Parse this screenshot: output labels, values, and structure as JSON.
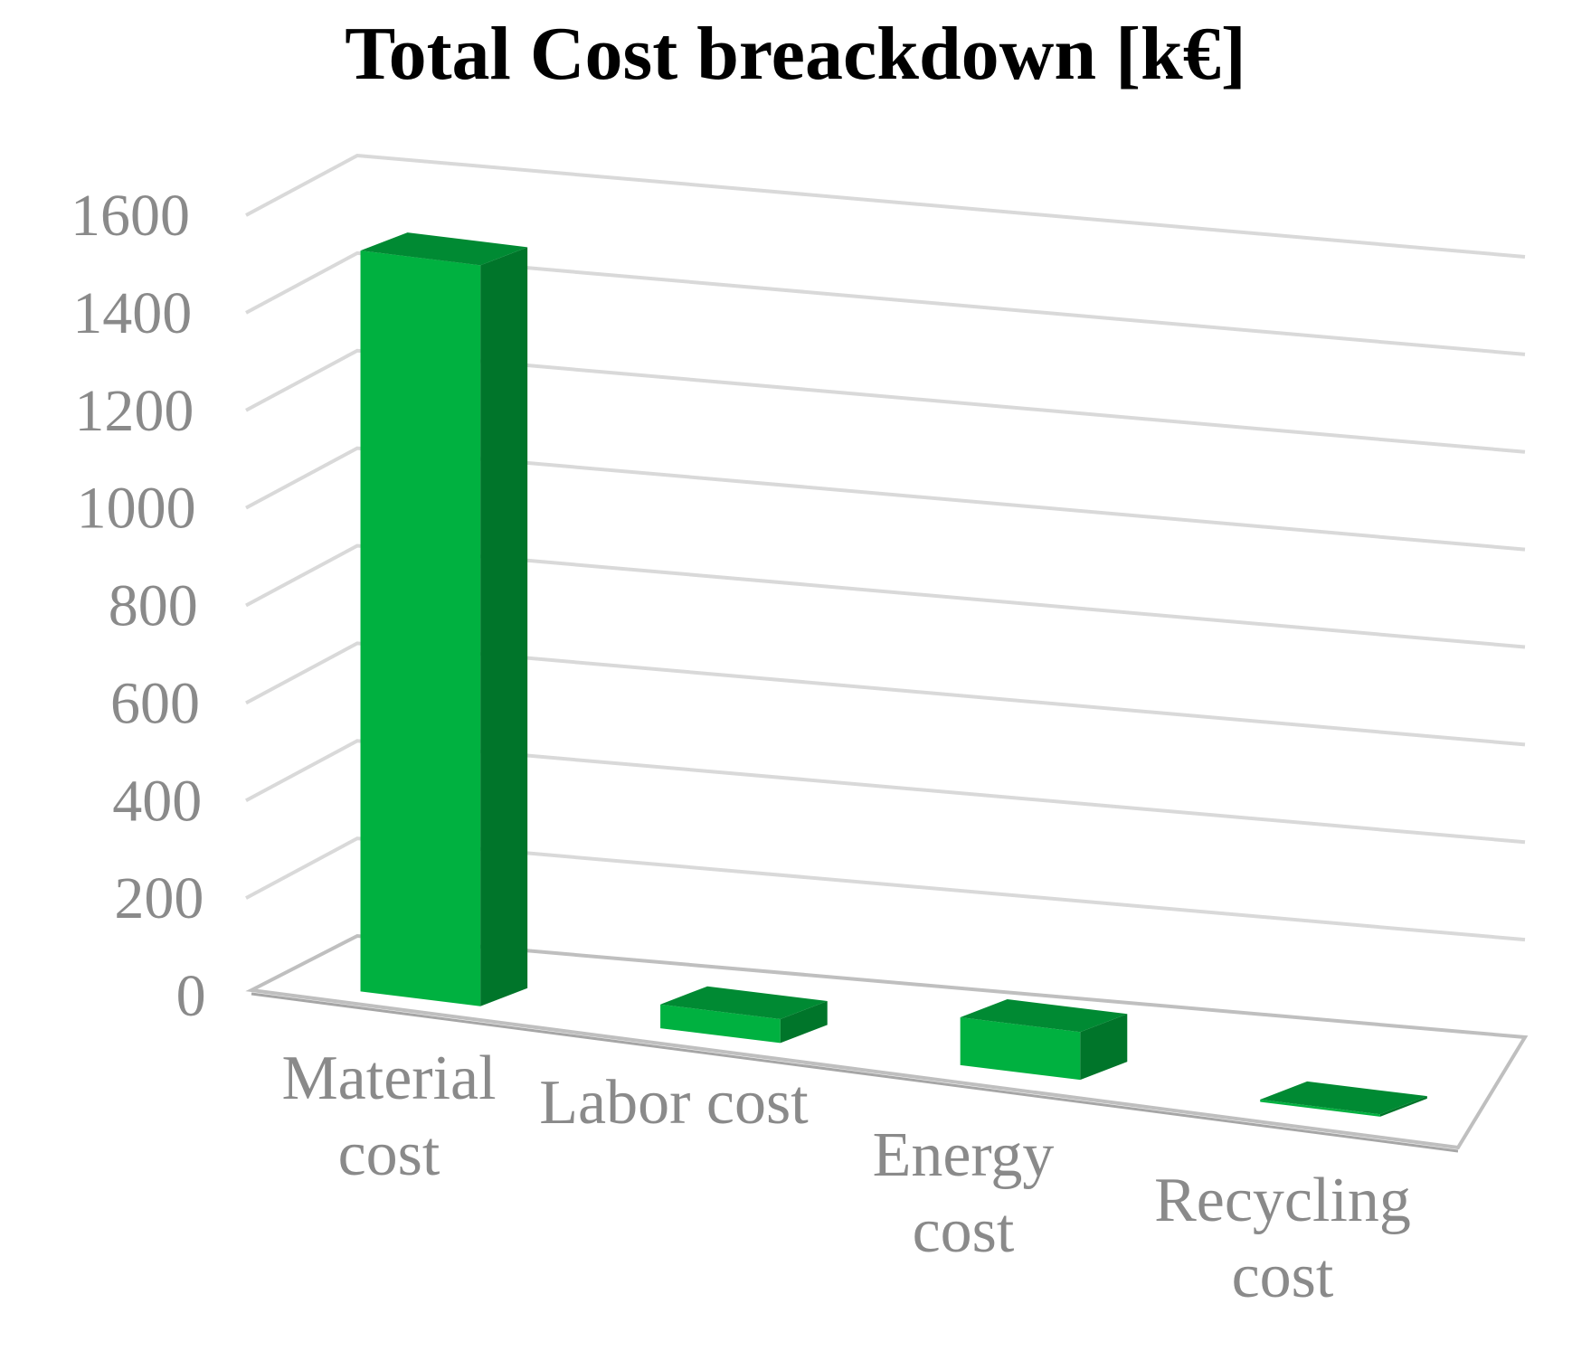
{
  "chart_data": {
    "type": "bar",
    "variant": "3d-column",
    "title": "Total Cost breackdown [k€]",
    "xlabel": "",
    "ylabel": "",
    "categories": [
      [
        "Material",
        "cost"
      ],
      [
        "Labor cost"
      ],
      [
        "Energy",
        "cost"
      ],
      [
        "Recycling",
        "cost"
      ]
    ],
    "values": [
      1550,
      50,
      100,
      5
    ],
    "ylim": [
      0,
      1600
    ],
    "yticks": [
      "0",
      "200",
      "400",
      "600",
      "800",
      "1000",
      "1200",
      "1400",
      "1600"
    ],
    "grid": true,
    "legend": "none",
    "colors": {
      "front": "#00b140",
      "side": "#00752a",
      "top": "#008a33",
      "grid": "#d9d9d9",
      "floor": "#bfbfbf",
      "labels": "#8a8a8a"
    }
  }
}
